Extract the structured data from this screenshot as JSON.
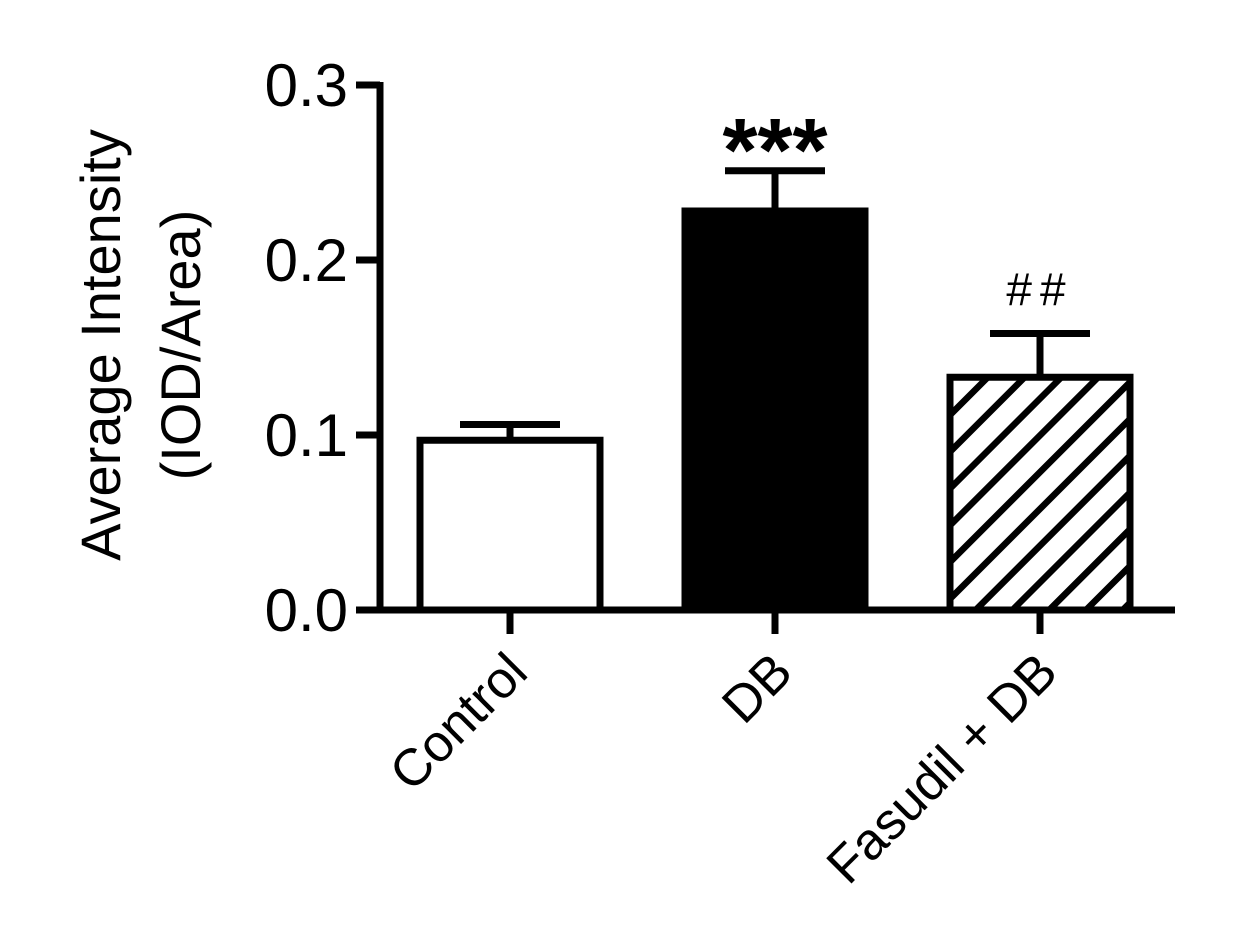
{
  "chart_data": {
    "type": "bar",
    "title": "",
    "xlabel": "",
    "ylabel": [
      "Average Intensity",
      "(IOD/Area)"
    ],
    "ylim": [
      0,
      0.3
    ],
    "yticks": [
      0.0,
      0.1,
      0.2,
      0.3
    ],
    "ytick_labels": [
      "0.0",
      "0.1",
      "0.2",
      "0.3"
    ],
    "categories": [
      "Control",
      "DB",
      "Fasudil + DB"
    ],
    "values": [
      0.097,
      0.228,
      0.133
    ],
    "errors": [
      0.009,
      0.023,
      0.025
    ],
    "fills": [
      "white",
      "black",
      "hatched"
    ],
    "annotations": [
      "",
      "***",
      "##"
    ],
    "grid": false,
    "legend": "none",
    "colors": {
      "stroke": "#000000",
      "background": "#ffffff"
    }
  }
}
